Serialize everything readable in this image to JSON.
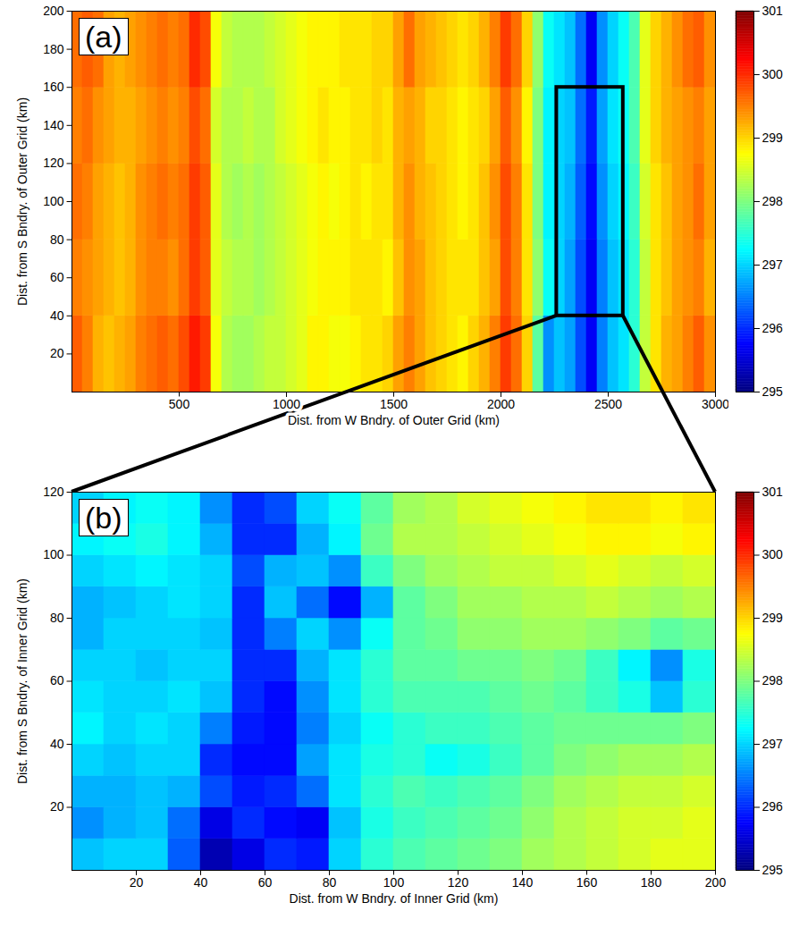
{
  "chart_data": [
    {
      "type": "heatmap",
      "title": "(a)",
      "x_label": "Dist. from W Bndry. of Outer Grid (km)",
      "y_label": "Dist. from S Bndry. of Outer Grid (km)",
      "xlim": [
        0,
        3000
      ],
      "xticks": [
        500,
        1000,
        1500,
        2000,
        2500,
        3000
      ],
      "ylim": [
        0,
        200
      ],
      "yticks": [
        20,
        40,
        60,
        80,
        100,
        120,
        140,
        160,
        180,
        200
      ],
      "inset_box": {
        "x": [
          2260,
          2570
        ],
        "y": [
          40,
          160
        ]
      },
      "colorbar": {
        "lim": [
          295,
          301
        ],
        "ticks": [
          295,
          296,
          297,
          298,
          299,
          300,
          301
        ]
      },
      "cells": {
        "x": [
          25,
          75,
          125,
          175,
          225,
          275,
          325,
          375,
          425,
          475,
          525,
          575,
          625,
          675,
          725,
          775,
          825,
          875,
          925,
          975,
          1025,
          1075,
          1125,
          1175,
          1225,
          1275,
          1325,
          1375,
          1425,
          1475,
          1525,
          1575,
          1625,
          1675,
          1725,
          1775,
          1825,
          1875,
          1925,
          1975,
          2025,
          2075,
          2125,
          2175,
          2225,
          2275,
          2325,
          2375,
          2425,
          2475,
          2525,
          2575,
          2625,
          2675,
          2725,
          2775,
          2825,
          2875,
          2925,
          2975
        ],
        "y": [
          20,
          60,
          100,
          140,
          180
        ],
        "values": [
          [
            299.7,
            299.5,
            299.2,
            299.1,
            299.2,
            299.3,
            299.5,
            299.6,
            299.7,
            299.6,
            299.8,
            300.1,
            299.9,
            298.7,
            298.3,
            298.2,
            298.2,
            298.3,
            298.4,
            298.4,
            298.5,
            298.6,
            298.8,
            298.8,
            298.7,
            298.7,
            298.8,
            298.9,
            298.9,
            299.0,
            299.3,
            299.5,
            299.3,
            299.1,
            299.0,
            298.9,
            298.8,
            299.0,
            299.2,
            299.5,
            299.9,
            299.6,
            299.0,
            297.8,
            296.6,
            296.9,
            296.7,
            296.2,
            295.7,
            296.5,
            296.9,
            297.1,
            297.5,
            298.4,
            298.9,
            299.2,
            299.3,
            299.5,
            299.7,
            299.4
          ],
          [
            299.5,
            299.4,
            299.3,
            299.2,
            299.1,
            299.2,
            299.4,
            299.5,
            299.5,
            299.4,
            299.6,
            299.9,
            299.7,
            298.6,
            298.4,
            298.3,
            298.3,
            298.2,
            298.3,
            298.4,
            298.5,
            298.6,
            298.7,
            298.8,
            298.8,
            298.8,
            298.9,
            298.9,
            298.9,
            298.8,
            299.1,
            299.4,
            299.3,
            299.1,
            299.0,
            298.9,
            298.9,
            298.9,
            299.1,
            299.3,
            299.8,
            299.5,
            298.9,
            298.1,
            297.3,
            297.0,
            296.7,
            296.2,
            295.7,
            296.5,
            296.9,
            297.1,
            297.5,
            298.4,
            298.9,
            299.1,
            299.3,
            299.4,
            299.5,
            299.2
          ],
          [
            299.6,
            299.5,
            299.3,
            299.2,
            299.1,
            299.2,
            299.4,
            299.5,
            299.6,
            299.5,
            299.6,
            299.9,
            299.7,
            298.6,
            298.3,
            298.2,
            298.3,
            298.2,
            298.3,
            298.4,
            298.5,
            298.6,
            298.7,
            298.8,
            298.7,
            298.8,
            298.9,
            298.8,
            298.9,
            298.9,
            299.2,
            299.4,
            299.2,
            299.1,
            299.0,
            298.9,
            298.8,
            298.9,
            299.1,
            299.4,
            299.8,
            299.5,
            298.9,
            298.0,
            297.2,
            297.0,
            296.8,
            296.3,
            295.8,
            296.6,
            297.0,
            297.2,
            297.6,
            298.5,
            298.9,
            299.1,
            299.3,
            299.4,
            299.6,
            299.3
          ],
          [
            299.5,
            299.6,
            299.4,
            299.3,
            299.2,
            299.2,
            299.3,
            299.4,
            299.5,
            299.4,
            299.5,
            299.8,
            299.6,
            298.5,
            298.3,
            298.3,
            298.4,
            298.3,
            298.3,
            298.5,
            298.6,
            298.7,
            298.8,
            298.9,
            298.8,
            298.8,
            298.9,
            298.9,
            299.0,
            298.9,
            299.2,
            299.3,
            299.2,
            299.0,
            299.0,
            298.9,
            298.8,
            298.9,
            299.0,
            299.3,
            299.7,
            299.4,
            298.8,
            298.0,
            297.2,
            297.0,
            296.9,
            296.4,
            295.9,
            296.7,
            297.1,
            297.3,
            297.7,
            298.6,
            299.0,
            299.2,
            299.3,
            299.4,
            299.5,
            299.3
          ],
          [
            299.6,
            299.7,
            299.6,
            299.3,
            299.2,
            299.3,
            299.4,
            299.5,
            299.6,
            299.5,
            299.6,
            300.0,
            299.8,
            298.7,
            298.4,
            298.3,
            298.3,
            298.3,
            298.4,
            298.5,
            298.6,
            298.7,
            298.8,
            298.8,
            298.8,
            298.9,
            298.9,
            298.9,
            299.0,
            299.0,
            299.3,
            299.6,
            299.3,
            299.2,
            299.1,
            299.0,
            298.9,
            299.0,
            299.2,
            299.5,
            299.9,
            299.6,
            299.0,
            298.1,
            297.3,
            297.1,
            296.9,
            296.4,
            295.7,
            296.6,
            297.0,
            297.3,
            297.7,
            298.6,
            299.0,
            299.2,
            299.4,
            299.6,
            299.7,
            299.4
          ]
        ]
      }
    },
    {
      "type": "heatmap",
      "title": "(b)",
      "x_label": "Dist. from W Bndry. of Inner Grid (km)",
      "y_label": "Dist. from S Bndry. of Inner Grid (km)",
      "xlim": [
        0,
        200
      ],
      "xticks": [
        20,
        40,
        60,
        80,
        100,
        120,
        140,
        160,
        180,
        200
      ],
      "ylim": [
        0,
        120
      ],
      "yticks": [
        20,
        40,
        60,
        80,
        100,
        120
      ],
      "colorbar": {
        "lim": [
          295,
          301
        ],
        "ticks": [
          295,
          296,
          297,
          298,
          299,
          300,
          301
        ]
      },
      "cells": {
        "x": [
          5,
          15,
          25,
          35,
          45,
          55,
          65,
          75,
          85,
          95,
          105,
          115,
          125,
          135,
          145,
          155,
          165,
          175,
          185,
          195
        ],
        "y": [
          5,
          15,
          25,
          35,
          45,
          55,
          65,
          75,
          85,
          95,
          105,
          115
        ],
        "values": [
          [
            296.9,
            297.0,
            297.0,
            296.3,
            295.3,
            295.6,
            296.0,
            295.9,
            297.0,
            297.5,
            297.7,
            297.8,
            297.9,
            298.0,
            298.2,
            298.3,
            298.4,
            298.5,
            298.6,
            298.6
          ],
          [
            296.6,
            296.8,
            296.9,
            296.4,
            295.6,
            296.0,
            295.8,
            295.7,
            296.9,
            297.4,
            297.6,
            297.7,
            297.8,
            297.9,
            298.1,
            298.3,
            298.4,
            298.5,
            298.5,
            298.6
          ],
          [
            296.8,
            296.8,
            296.9,
            296.8,
            296.2,
            295.9,
            296.0,
            296.4,
            297.1,
            297.5,
            297.7,
            297.6,
            297.7,
            297.8,
            298.0,
            298.2,
            298.3,
            298.4,
            298.4,
            298.5
          ],
          [
            297.0,
            296.9,
            297.0,
            297.0,
            296.0,
            295.8,
            295.8,
            296.7,
            297.1,
            297.4,
            297.5,
            297.3,
            297.4,
            297.6,
            297.8,
            298.0,
            298.1,
            298.2,
            298.2,
            298.3
          ],
          [
            297.2,
            297.0,
            297.1,
            297.0,
            296.5,
            295.9,
            295.8,
            296.5,
            297.0,
            297.3,
            297.5,
            297.6,
            297.6,
            297.7,
            297.8,
            297.9,
            297.9,
            297.9,
            297.9,
            298.0
          ],
          [
            297.1,
            297.0,
            297.0,
            297.1,
            296.9,
            296.0,
            295.8,
            296.6,
            297.1,
            297.5,
            297.7,
            297.7,
            297.7,
            297.8,
            297.9,
            297.8,
            297.6,
            297.4,
            296.9,
            297.5
          ],
          [
            297.0,
            297.0,
            296.9,
            297.0,
            297.0,
            296.0,
            296.0,
            296.8,
            297.1,
            297.5,
            297.8,
            297.8,
            297.9,
            297.9,
            298.0,
            297.9,
            297.6,
            297.2,
            296.6,
            297.4
          ],
          [
            296.8,
            297.0,
            297.0,
            297.0,
            296.9,
            296.0,
            296.5,
            297.0,
            296.6,
            297.3,
            297.8,
            297.9,
            298.1,
            298.1,
            298.2,
            298.2,
            298.1,
            298.0,
            297.8,
            297.9
          ],
          [
            296.8,
            296.9,
            297.0,
            297.1,
            297.0,
            296.0,
            296.9,
            296.4,
            295.8,
            296.8,
            297.8,
            298.0,
            298.2,
            298.2,
            298.3,
            298.3,
            298.4,
            298.3,
            298.2,
            298.3
          ],
          [
            297.0,
            297.1,
            297.2,
            297.1,
            297.0,
            296.2,
            296.8,
            296.9,
            296.6,
            297.6,
            298.0,
            298.2,
            298.3,
            298.4,
            298.4,
            298.5,
            298.6,
            298.5,
            298.4,
            298.5
          ],
          [
            297.2,
            297.3,
            297.4,
            297.2,
            296.8,
            296.0,
            296.0,
            296.8,
            297.2,
            297.9,
            298.3,
            298.3,
            298.4,
            298.5,
            298.6,
            298.7,
            298.8,
            298.8,
            298.7,
            298.8
          ],
          [
            297.0,
            297.2,
            297.3,
            297.2,
            296.6,
            296.0,
            296.2,
            297.0,
            297.3,
            297.8,
            298.2,
            298.3,
            298.5,
            298.6,
            298.7,
            298.8,
            298.9,
            298.9,
            298.8,
            298.9
          ]
        ]
      }
    }
  ]
}
